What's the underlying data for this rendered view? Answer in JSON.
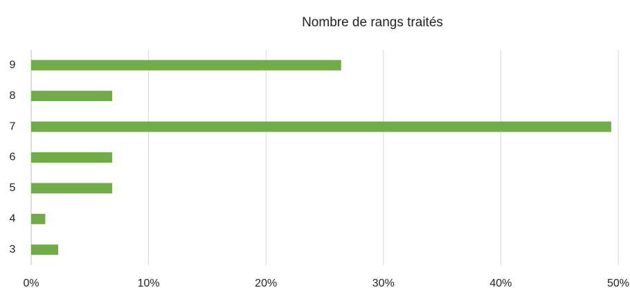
{
  "chart_data": {
    "type": "barh",
    "title": "Nombre de rangs traités",
    "categories": [
      "3",
      "4",
      "5",
      "6",
      "7",
      "8",
      "9"
    ],
    "values": [
      2.3,
      1.2,
      6.9,
      6.9,
      49.4,
      6.9,
      26.4
    ],
    "color": "#70ad47",
    "xlim": [
      0,
      50
    ],
    "xticks": [
      {
        "value": 0,
        "label": "0%"
      },
      {
        "value": 10,
        "label": "10%"
      },
      {
        "value": 20,
        "label": "20%"
      },
      {
        "value": 30,
        "label": "30%"
      },
      {
        "value": 40,
        "label": "40%"
      },
      {
        "value": 50,
        "label": "50%"
      }
    ],
    "grid": true
  }
}
